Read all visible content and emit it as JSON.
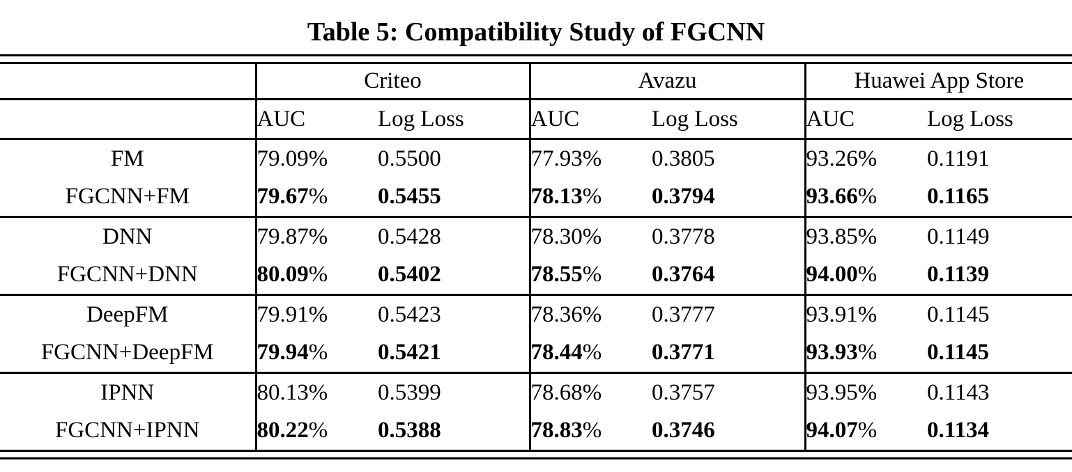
{
  "title": "Table 5: Compatibility Study of FGCNN",
  "table": {
    "groups": [
      "Criteo",
      "Avazu",
      "Huawei App Store"
    ],
    "sub_columns": {
      "auc": "AUC",
      "logloss": "Log Loss"
    },
    "rows": [
      {
        "model": "FM",
        "bold": false,
        "criteo_auc": "79.09%",
        "criteo_logloss": "0.5500",
        "avazu_auc": "77.93%",
        "avazu_logloss": "0.3805",
        "huawei_auc": "93.26%",
        "huawei_logloss": "0.1191"
      },
      {
        "model": "FGCNN+FM",
        "bold": true,
        "criteo_auc": "79.67%",
        "criteo_logloss": "0.5455",
        "avazu_auc": "78.13%",
        "avazu_logloss": "0.3794",
        "huawei_auc": "93.66%",
        "huawei_logloss": "0.1165"
      },
      {
        "model": "DNN",
        "bold": false,
        "criteo_auc": "79.87%",
        "criteo_logloss": "0.5428",
        "avazu_auc": "78.30%",
        "avazu_logloss": "0.3778",
        "huawei_auc": "93.85%",
        "huawei_logloss": "0.1149"
      },
      {
        "model": "FGCNN+DNN",
        "bold": true,
        "criteo_auc": "80.09%",
        "criteo_logloss": "0.5402",
        "avazu_auc": "78.55%",
        "avazu_logloss": "0.3764",
        "huawei_auc": "94.00%",
        "huawei_logloss": "0.1139"
      },
      {
        "model": "DeepFM",
        "bold": false,
        "criteo_auc": "79.91%",
        "criteo_logloss": "0.5423",
        "avazu_auc": "78.36%",
        "avazu_logloss": "0.3777",
        "huawei_auc": "93.91%",
        "huawei_logloss": "0.1145"
      },
      {
        "model": "FGCNN+DeepFM",
        "bold": true,
        "criteo_auc": "79.94%",
        "criteo_logloss": "0.5421",
        "avazu_auc": "78.44%",
        "avazu_logloss": "0.3771",
        "huawei_auc": "93.93%",
        "huawei_logloss": "0.1145"
      },
      {
        "model": "IPNN",
        "bold": false,
        "criteo_auc": "80.13%",
        "criteo_logloss": "0.5399",
        "avazu_auc": "78.68%",
        "avazu_logloss": "0.3757",
        "huawei_auc": "93.95%",
        "huawei_logloss": "0.1143"
      },
      {
        "model": "FGCNN+IPNN",
        "bold": true,
        "criteo_auc": "80.22%",
        "criteo_logloss": "0.5388",
        "avazu_auc": "78.83%",
        "avazu_logloss": "0.3746",
        "huawei_auc": "94.07%",
        "huawei_logloss": "0.1134"
      }
    ]
  }
}
